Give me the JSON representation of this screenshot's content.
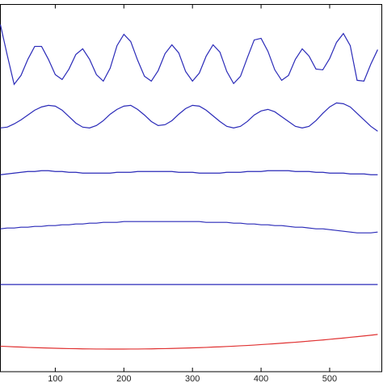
{
  "chart_data": {
    "type": "line",
    "x": [
      20,
      30,
      40,
      50,
      60,
      70,
      80,
      90,
      100,
      110,
      120,
      130,
      140,
      150,
      160,
      170,
      180,
      190,
      200,
      210,
      220,
      230,
      240,
      250,
      260,
      270,
      280,
      290,
      300,
      310,
      320,
      330,
      340,
      350,
      360,
      370,
      380,
      390,
      400,
      410,
      420,
      430,
      440,
      450,
      460,
      470,
      480,
      490,
      500,
      510,
      520,
      530,
      540,
      550,
      560,
      570
    ],
    "series": [
      {
        "color": "#2a2ab8",
        "values": [
          430,
          392,
          356,
          367,
          387,
          403,
          403,
          387,
          368,
          362,
          375,
          393,
          400,
          387,
          368,
          360,
          376,
          404,
          418,
          409,
          386,
          366,
          360,
          373,
          394,
          405,
          395,
          372,
          360,
          370,
          391,
          405,
          396,
          372,
          357,
          366,
          389,
          411,
          413,
          397,
          374,
          361,
          367,
          387,
          400,
          391,
          375,
          374,
          388,
          408,
          419,
          404,
          361,
          360,
          381,
          399
        ]
      },
      {
        "color": "#2a2ab8",
        "values": [
          302,
          303,
          307,
          312,
          318,
          324,
          328,
          330,
          329,
          324,
          316,
          308,
          303,
          302,
          305,
          311,
          319,
          325,
          329,
          330,
          325,
          318,
          310,
          305,
          306,
          311,
          319,
          326,
          330,
          329,
          324,
          317,
          310,
          304,
          302,
          304,
          310,
          318,
          323,
          325,
          322,
          316,
          310,
          304,
          302,
          304,
          311,
          320,
          328,
          333,
          332,
          328,
          320,
          312,
          304,
          298
        ]
      },
      {
        "color": "#2a2ab8",
        "values": [
          244,
          245,
          246,
          247,
          248,
          248,
          249,
          249,
          248,
          248,
          247,
          247,
          246,
          246,
          246,
          246,
          246,
          247,
          247,
          247,
          248,
          248,
          248,
          248,
          248,
          248,
          247,
          247,
          247,
          246,
          246,
          246,
          246,
          247,
          247,
          247,
          248,
          248,
          248,
          249,
          249,
          249,
          249,
          248,
          248,
          248,
          247,
          247,
          246,
          246,
          246,
          245,
          245,
          245,
          244,
          244
        ]
      },
      {
        "color": "#2a2ab8",
        "values": [
          177,
          178,
          178,
          179,
          179,
          180,
          180,
          181,
          181,
          182,
          182,
          183,
          183,
          184,
          184,
          185,
          185,
          185,
          186,
          186,
          186,
          186,
          186,
          186,
          186,
          186,
          186,
          186,
          186,
          186,
          185,
          185,
          185,
          185,
          184,
          184,
          183,
          183,
          182,
          182,
          181,
          181,
          180,
          179,
          179,
          178,
          177,
          177,
          176,
          175,
          174,
          173,
          172,
          172,
          172,
          173
        ]
      },
      {
        "color": "#2a2ab8",
        "values": [
          108,
          108,
          108,
          108,
          108,
          108,
          108,
          108,
          108,
          108,
          108,
          108,
          108,
          108,
          108,
          108,
          108,
          108,
          108,
          108,
          108,
          108,
          108,
          108,
          108,
          108,
          108,
          108,
          108,
          108,
          108,
          108,
          108,
          108,
          108,
          108,
          108,
          108,
          108,
          108,
          108,
          108,
          108,
          108,
          108,
          108,
          108,
          108,
          108,
          108,
          108,
          108,
          108,
          108,
          108,
          108
        ]
      },
      {
        "color": "#e03232",
        "values": [
          31.6,
          31.2,
          30.8,
          30.5,
          30.1,
          29.8,
          29.5,
          29.3,
          29.0,
          28.8,
          28.6,
          28.5,
          28.3,
          28.2,
          28.1,
          28.1,
          28.0,
          28.0,
          28.0,
          28.1,
          28.1,
          28.2,
          28.3,
          28.5,
          28.6,
          28.8,
          29.0,
          29.3,
          29.5,
          29.8,
          30.1,
          30.5,
          30.8,
          31.2,
          31.6,
          32.1,
          32.5,
          33.0,
          33.6,
          34.1,
          34.7,
          35.3,
          35.9,
          36.5,
          37.2,
          37.9,
          38.6,
          39.3,
          40.1,
          40.9,
          41.7,
          42.6,
          43.4,
          44.3,
          45.2,
          46.2
        ]
      }
    ],
    "xlim": [
      20,
      576
    ],
    "xticks": [
      100,
      200,
      300,
      400,
      500
    ],
    "ylim": [
      0,
      455
    ]
  }
}
